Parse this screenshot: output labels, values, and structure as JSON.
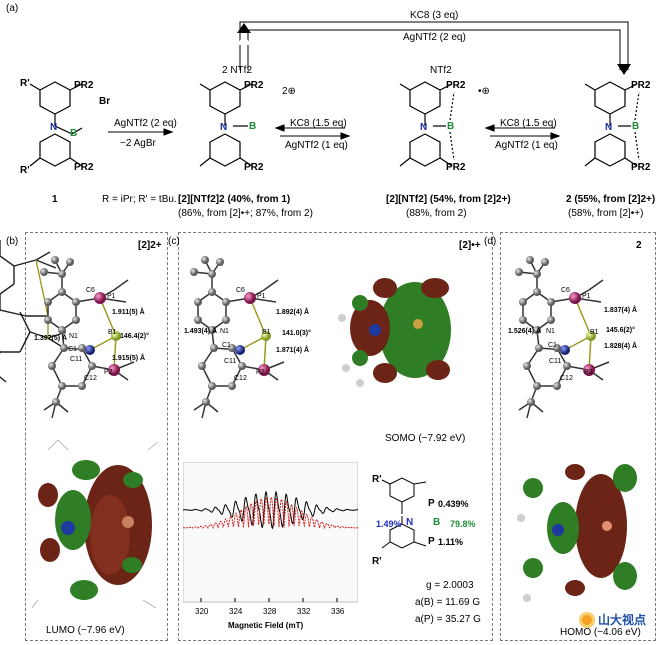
{
  "figure": {
    "label_a": "(a)",
    "label_b": "(b)",
    "label_c": "(c)",
    "label_d": "(d)"
  },
  "scheme": {
    "top_arrow_reagent1": "KC8 (3 eq)",
    "top_arrow_reagent2": "AgNTf2 (2 eq)",
    "compound1": {
      "number": "1",
      "anion": "Br",
      "substituent": "R'",
      "groups": "PR2"
    },
    "step1": {
      "reagent": "AgNTf2 (2 eq)",
      "byproduct": "−2 AgBr"
    },
    "compound2_dication": {
      "counterion": "2 NTf2",
      "charge": "2⊕",
      "label": "[2][NTf2]2 (40%, from 1)",
      "yield2": "(86%, from [2]•+; 87%, from 2)"
    },
    "step2": {
      "forward": "KC8 (1.5 eq)",
      "reverse": "AgNTf2 (1 eq)"
    },
    "compound2_radical": {
      "counterion": "NTf2",
      "charge": "•⊕",
      "label": "[2][NTf2] (54%, from [2]2+)",
      "yield2": "(88%, from 2)"
    },
    "step3": {
      "forward": "KC8 (1.5 eq)",
      "reverse": "AgNTf2 (1 eq)"
    },
    "compound2_neutral": {
      "label": "2 (55%, from [2]2+)",
      "yield2": "(58%, from [2]•+)"
    },
    "definitions": "R = iPr; R' = tBu."
  },
  "panel_b": {
    "title": "[2]2+",
    "atoms": [
      "C6",
      "P1",
      "N1",
      "B1",
      "C1",
      "C11",
      "P2",
      "C12"
    ],
    "bond_NB": "1.397(5) Å",
    "bond_BP1": "1.911(5) Å",
    "angle": "146.4(2)°",
    "bond_BP2": "1.915(5) Å",
    "orbital_label": "LUMO (−7.96 eV)"
  },
  "panel_c": {
    "title": "[2]•+",
    "atoms": [
      "C6",
      "P1",
      "N1",
      "B1",
      "C1",
      "C11",
      "P2",
      "C12"
    ],
    "bond_NB": "1.493(4) Å",
    "bond_BP1": "1.892(4) Å",
    "angle": "141.0(3)°",
    "bond_BP2": "1.871(4) Å",
    "orbital_label": "SOMO (−7.92 eV)",
    "epr": {
      "xlabel": "Magnetic Field (mT)",
      "ticks": [
        "320",
        "324",
        "328",
        "332",
        "336"
      ]
    },
    "spin": {
      "N": "1.49%",
      "B": "79.8%",
      "P1": "0.439%",
      "P2": "1.11%"
    },
    "g": "g = 2.0003",
    "aB": "a(B) = 11.69 G",
    "aP": "a(P) = 35.27 G"
  },
  "panel_d": {
    "title": "2",
    "atoms": [
      "C6",
      "P1",
      "N1",
      "B1",
      "C1",
      "C11",
      "P2",
      "C12"
    ],
    "bond_NB": "1.526(4) Å",
    "bond_BP1": "1.837(4) Å",
    "angle": "145.6(2)°",
    "bond_BP2": "1.828(4) Å",
    "orbital_label": "HOMO (−4.06 eV)"
  },
  "watermark": "山大视点",
  "colors": {
    "boron": "#b8d04a",
    "nitrogen": "#2a3a9a",
    "phosphorus": "#b0306a",
    "carbon": "#8c8c8c",
    "orbital_red": "#7a2a1a",
    "orbital_green": "#2f7d24",
    "epr_black": "#000000",
    "epr_red": "#d22020",
    "spin_blue": "#2030c0",
    "spin_green": "#1f8a3a"
  }
}
